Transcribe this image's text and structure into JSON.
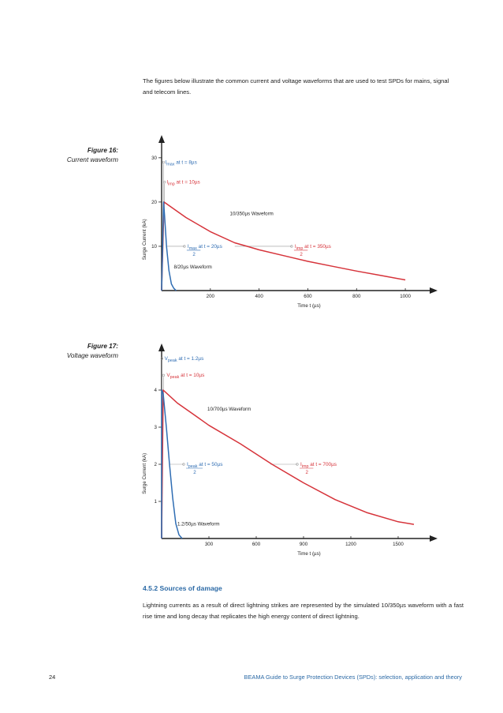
{
  "intro_text": "The figures below illustrate the common current and voltage waveforms that are used to test SPDs for mains, signal and telecom lines.",
  "section": {
    "heading": "4.5.2 Sources of damage",
    "body": "Lightning currents as a result of direct lightning strikes are represented by the simulated 10/350µs waveform with a fast rise time and long decay that replicates the high energy content of direct lightning."
  },
  "footer": {
    "page_number": "24",
    "title": "BEAMA Guide to Surge Protection Devices (SPDs): selection, application and theory"
  },
  "colors": {
    "red": "#d6333a",
    "blue": "#2f6db3",
    "axis": "#222222",
    "guide": "#999999"
  },
  "chart_data": [
    {
      "type": "line",
      "figure_number": "Figure 16:",
      "figure_caption": "Current waveform",
      "xlabel": "Time t (µs)",
      "ylabel": "Surge Current (kA)",
      "xlim": [
        0,
        1100
      ],
      "ylim": [
        0,
        33
      ],
      "x_ticks": [
        200,
        400,
        600,
        800,
        1000
      ],
      "y_ticks": [
        10,
        20,
        30
      ],
      "series": [
        {
          "name": "10/350µs Waveform",
          "color": "#d6333a",
          "x": [
            0,
            10,
            100,
            200,
            300,
            350,
            400,
            500,
            600,
            700,
            800,
            900,
            1000
          ],
          "y": [
            0,
            20,
            16.5,
            13.3,
            10.8,
            10,
            9.2,
            7.9,
            6.6,
            5.5,
            4.4,
            3.4,
            2.4
          ]
        },
        {
          "name": "8/20µs Waveform",
          "color": "#2f6db3",
          "x": [
            0,
            8,
            12,
            20,
            30,
            40,
            50,
            60
          ],
          "y": [
            0,
            20,
            17,
            10,
            4.5,
            1.5,
            0.5,
            0
          ]
        }
      ],
      "annotations": [
        {
          "sym": "I",
          "sub": "max",
          "text": " at t = 8µs",
          "color": "#2f6db3",
          "x": 8,
          "y": 29,
          "anchor_x": 8,
          "anchor_y": 20
        },
        {
          "sym": "I",
          "sub": "imp",
          "text": " at t = 10µs",
          "color": "#d6333a",
          "x": 14,
          "y": 24.5,
          "anchor_x": 12,
          "anchor_y": 20
        },
        {
          "sym": "I",
          "sub": "max",
          "text": " at t = 20µs",
          "denom": "2",
          "color": "#2f6db3",
          "x": 100,
          "y": 10,
          "anchor_x": 22,
          "anchor_y": 10
        },
        {
          "sym": "I",
          "sub": "imp",
          "text": " at t = 350µs",
          "denom": "2",
          "color": "#d6333a",
          "x": 540,
          "y": 10,
          "anchor_x": 300,
          "anchor_y": 10
        }
      ],
      "labels": [
        {
          "text": "10/350µs Waveform",
          "x": 280,
          "y": 17
        },
        {
          "text": "8/20µs Waveform",
          "x": 50,
          "y": 5
        }
      ]
    },
    {
      "type": "line",
      "figure_number": "Figure 17:",
      "figure_caption": "Voltage waveform",
      "xlabel": "Time t (µs)",
      "ylabel": "Surge Current (kA)",
      "xlim": [
        0,
        1700
      ],
      "ylim": [
        0,
        5
      ],
      "x_ticks": [
        300,
        600,
        900,
        1200,
        1500
      ],
      "y_ticks": [
        1,
        2,
        3,
        4
      ],
      "series": [
        {
          "name": "10/700µs Waveform",
          "color": "#d6333a",
          "x": [
            0,
            10,
            100,
            200,
            300,
            500,
            700,
            900,
            1100,
            1300,
            1500,
            1600
          ],
          "y": [
            0,
            4,
            3.65,
            3.35,
            3.05,
            2.55,
            2.0,
            1.5,
            1.05,
            0.7,
            0.45,
            0.38
          ]
        },
        {
          "name": "1.2/50µs Waveform",
          "color": "#2f6db3",
          "x": [
            0,
            1.2,
            10,
            30,
            50,
            70,
            90,
            110,
            130
          ],
          "y": [
            0,
            4,
            3.9,
            3.0,
            2.0,
            1.1,
            0.4,
            0.1,
            0
          ]
        }
      ],
      "annotations": [
        {
          "sym": "V",
          "sub": "peak",
          "text": " at t = 1.2µs",
          "color": "#2f6db3",
          "x": 8,
          "y": 4.85,
          "anchor_x": 2,
          "anchor_y": 4
        },
        {
          "sym": "V",
          "sub": "peak",
          "text": " at t = 10µs",
          "color": "#d6333a",
          "x": 22,
          "y": 4.4,
          "anchor_x": 12,
          "anchor_y": 4
        },
        {
          "sym": "I",
          "sub": "peak",
          "text": " at t = 50µs",
          "denom": "2",
          "color": "#2f6db3",
          "x": 150,
          "y": 2,
          "anchor_x": 52,
          "anchor_y": 2
        },
        {
          "sym": "I",
          "sub": "imp",
          "text": " at t = 700µs",
          "denom": "2",
          "color": "#d6333a",
          "x": 870,
          "y": 2,
          "anchor_x": 690,
          "anchor_y": 2
        }
      ],
      "labels": [
        {
          "text": "10/700µs Waveform",
          "x": 290,
          "y": 3.45
        },
        {
          "text": "1.2/50µs Waveform",
          "x": 100,
          "y": 0.35
        }
      ]
    }
  ]
}
